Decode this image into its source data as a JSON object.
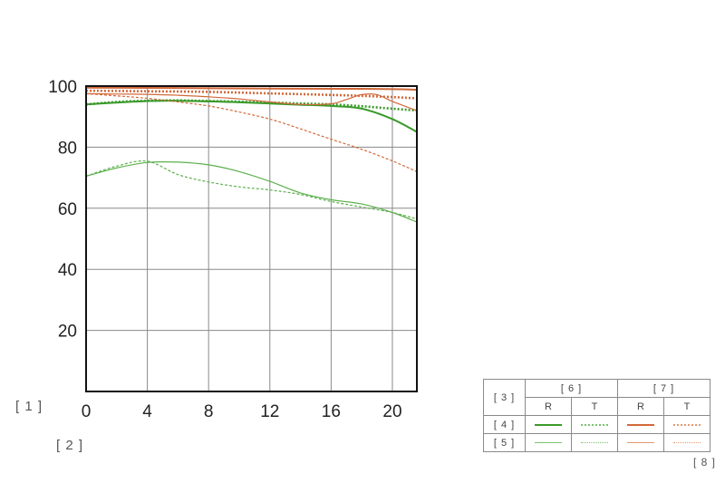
{
  "notes": {
    "n1": "[ 1 ]",
    "n2": "[ 2 ]",
    "n8": "[ 8 ]"
  },
  "legend": {
    "corner": "[ 3 ]",
    "groups": [
      "[ 6 ]",
      "[ 7 ]"
    ],
    "subheads": [
      "R",
      "T",
      "R",
      "T"
    ],
    "rows": [
      "[ 4 ]",
      "[ 5 ]"
    ],
    "colors": {
      "green": "#3a9a2a",
      "orange": "#d2693a",
      "green_light": "#7cc26e",
      "orange_light": "#e39a72"
    }
  },
  "chart_data": {
    "type": "line",
    "title": "",
    "xlabel": "",
    "ylabel": "",
    "xlim": [
      0,
      21.6
    ],
    "ylim": [
      0,
      100
    ],
    "xticks": [
      0,
      4,
      8,
      12,
      16,
      20
    ],
    "yticks": [
      20,
      40,
      60,
      80,
      100
    ],
    "grid": true,
    "legend_placement": "bottom-right",
    "series": [
      {
        "key": "g-thick-r",
        "color": "#3a9a2a",
        "width": 2,
        "dash": false,
        "x": [
          0,
          2,
          4,
          6,
          8,
          10,
          12,
          14,
          16,
          18,
          20,
          21.6
        ],
        "y": [
          94,
          94.6,
          95.1,
          95.2,
          95,
          94.7,
          94.3,
          93.9,
          93.5,
          92.6,
          89.2,
          85
        ]
      },
      {
        "key": "g-thick-t",
        "color": "#3a9a2a",
        "width": 2.6,
        "dash": true,
        "x": [
          0,
          2,
          4,
          6,
          8,
          10,
          12,
          14,
          16,
          18,
          20,
          21.6
        ],
        "y": [
          94,
          94.8,
          95.2,
          95.3,
          95.1,
          94.9,
          94.6,
          94.3,
          94,
          93.4,
          92.6,
          92
        ]
      },
      {
        "key": "g-thin-r",
        "color": "#5db04d",
        "width": 1.2,
        "dash": false,
        "x": [
          0,
          2,
          4,
          6,
          8,
          10,
          12,
          14,
          16,
          18,
          20,
          21.6
        ],
        "y": [
          70.5,
          73.2,
          75,
          75.1,
          74.2,
          72,
          68.8,
          65,
          62.8,
          61.4,
          58.6,
          55.5
        ]
      },
      {
        "key": "g-thin-t",
        "color": "#5db04d",
        "width": 1.2,
        "dash": true,
        "x": [
          0,
          2,
          4,
          6,
          8,
          10,
          12,
          14,
          16,
          18,
          20,
          21.6
        ],
        "y": [
          70.5,
          73.8,
          75.4,
          71,
          68.6,
          67,
          66,
          64.5,
          62.2,
          60.4,
          58.6,
          56.5
        ]
      },
      {
        "key": "o-thick-r",
        "color": "#d2693a",
        "width": 2,
        "dash": false,
        "x": [
          0,
          4,
          8,
          12,
          16,
          18,
          20,
          21.6
        ],
        "y": [
          99.5,
          99.4,
          99.3,
          99.2,
          99.1,
          99.1,
          99,
          98.8
        ]
      },
      {
        "key": "o-thick-t",
        "color": "#d2693a",
        "width": 2.6,
        "dash": true,
        "x": [
          0,
          4,
          8,
          12,
          16,
          18,
          20,
          21.6
        ],
        "y": [
          98.5,
          98.3,
          98.1,
          97.6,
          97.1,
          96.8,
          96.4,
          96
        ]
      },
      {
        "key": "o-thin-r",
        "color": "#d2693a",
        "width": 1.2,
        "dash": false,
        "x": [
          0,
          2,
          4,
          6,
          8,
          10,
          12,
          14,
          16,
          17,
          18,
          19,
          20,
          21.6
        ],
        "y": [
          97.5,
          97.4,
          97.3,
          97,
          96.5,
          95.8,
          94.8,
          94,
          94.2,
          95.6,
          97.2,
          97.2,
          95,
          92
        ]
      },
      {
        "key": "o-thin-t",
        "color": "#d2693a",
        "width": 1.2,
        "dash": true,
        "x": [
          0,
          2,
          4,
          6,
          8,
          10,
          12,
          14,
          16,
          18,
          20,
          21.6
        ],
        "y": [
          97.5,
          96.8,
          96,
          94.8,
          93.5,
          91.5,
          89.2,
          86,
          82.6,
          79.3,
          75.5,
          72
        ]
      }
    ]
  }
}
